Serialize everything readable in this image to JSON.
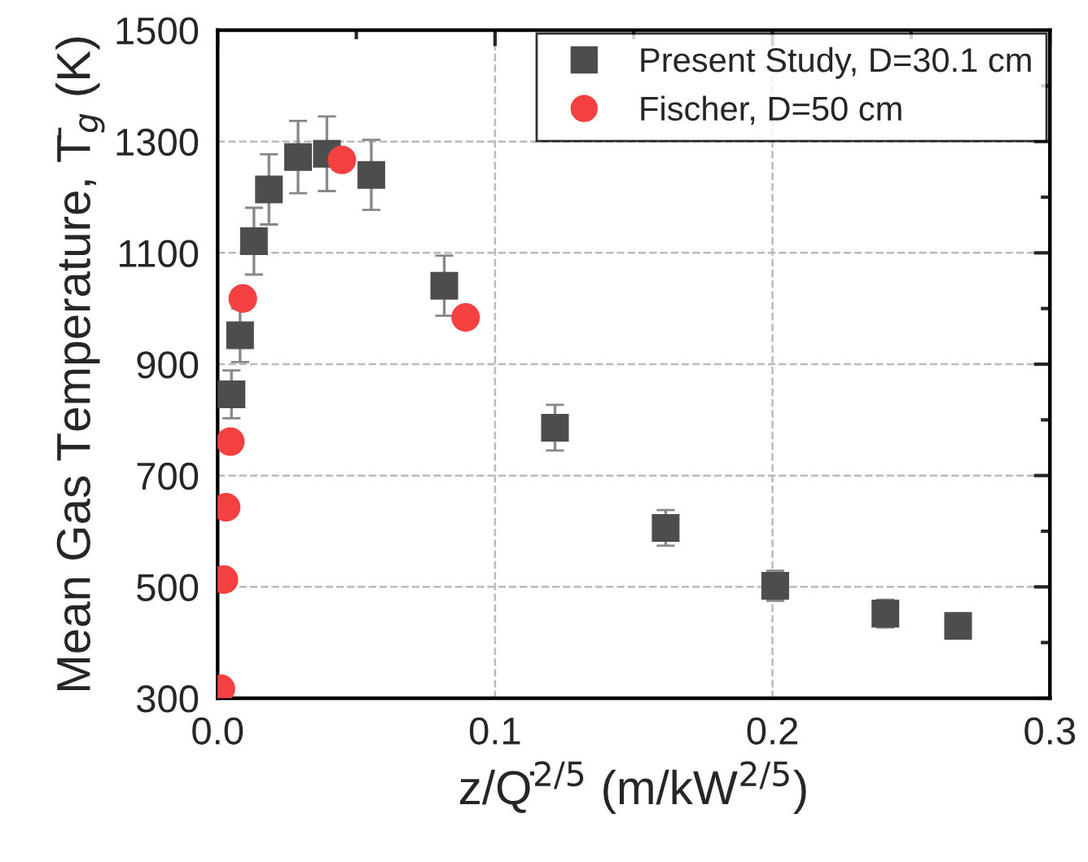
{
  "chart_data": {
    "type": "scatter",
    "xlabel": "z/Q̇$^{2/5}$ (m/kW$^{2/5}$)",
    "ylabel": "Mean Gas Temperature, T̄$_{g}$ (K)",
    "xlim": [
      0,
      0.3
    ],
    "xticks": [
      {
        "value": 0,
        "label": "0.0"
      },
      0.1,
      0.2,
      0.3
    ],
    "ylim": [
      300,
      1500
    ],
    "yticks": [
      300,
      500,
      700,
      900,
      1100,
      1300,
      1500
    ],
    "grid": true,
    "legend": "top right",
    "series": [
      {
        "name": "Present Study, D=30.1 cm",
        "color": "#4d4d4d",
        "marker": "square",
        "x": [
          0.005,
          0.0081,
          0.0131,
          0.0185,
          0.029,
          0.0394,
          0.0554,
          0.0817,
          0.1216,
          0.1615,
          0.201,
          0.2407,
          0.2669
        ],
        "values": [
          846,
          952,
          1121,
          1214,
          1272,
          1278,
          1240,
          1041,
          786,
          606,
          502,
          452,
          430
        ],
        "errors": [
          43,
          48,
          60,
          63,
          65,
          67,
          63,
          54,
          41,
          32,
          27,
          25,
          22
        ]
      },
      {
        "name": "Fischer, D=50 cm",
        "color": "#f44040",
        "marker": "circle",
        "x": [
          0.0012,
          0.0023,
          0.0031,
          0.0046,
          0.0091,
          0.0448,
          0.0894
        ],
        "values": [
          317,
          513,
          643,
          761,
          1018,
          1267,
          984
        ]
      }
    ]
  }
}
